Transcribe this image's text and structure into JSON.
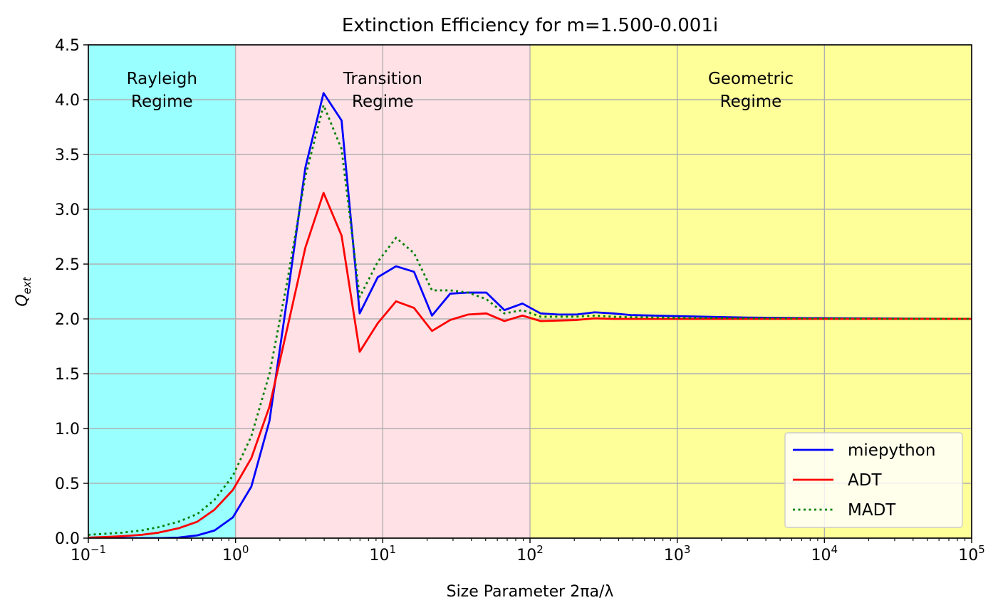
{
  "chart_data": {
    "type": "line",
    "title": "Extinction Efficiency for m=1.500-0.001i",
    "xlabel": "Size Parameter 2πa/λ",
    "ylabel": "Q_ext",
    "xscale": "log",
    "xlim": [
      0.1,
      100000
    ],
    "ylim": [
      0,
      4.5
    ],
    "grid": true,
    "legend_position": "lower right",
    "x_ticks": [
      {
        "base": "10",
        "exp": "−1"
      },
      {
        "base": "10",
        "exp": "0"
      },
      {
        "base": "10",
        "exp": "1"
      },
      {
        "base": "10",
        "exp": "2"
      },
      {
        "base": "10",
        "exp": "3"
      },
      {
        "base": "10",
        "exp": "4"
      },
      {
        "base": "10",
        "exp": "5"
      }
    ],
    "y_ticks": [
      "0.0",
      "0.5",
      "1.0",
      "1.5",
      "2.0",
      "2.5",
      "3.0",
      "3.5",
      "4.0",
      "4.5"
    ],
    "regions": [
      {
        "line1": "Rayleigh",
        "line2": "Regime",
        "from": 0.1,
        "to": 1,
        "color": "#99ffff"
      },
      {
        "line1": "Transition",
        "line2": "Regime",
        "from": 1,
        "to": 100,
        "color": "#ffe1e6"
      },
      {
        "line1": "Geometric",
        "line2": "Regime",
        "from": 100,
        "to": 100000,
        "color": "#ffff99"
      }
    ],
    "series": [
      {
        "name": "miepython",
        "color": "#0000ff",
        "style": "solid",
        "x": [
          0.1,
          0.13,
          0.17,
          0.23,
          0.3,
          0.41,
          0.55,
          0.72,
          0.96,
          1.28,
          1.7,
          2.25,
          2.98,
          3.96,
          5.25,
          6.97,
          9.24,
          12.3,
          16.3,
          21.6,
          28.7,
          38.1,
          50.5,
          67,
          88.9,
          118,
          156,
          207,
          275,
          365,
          484,
          1000,
          3000,
          10000,
          30000,
          100000
        ],
        "values": [
          0.0,
          0.0,
          0.0,
          0.0,
          0.0,
          0.005,
          0.025,
          0.07,
          0.19,
          0.47,
          1.07,
          2.2,
          3.38,
          4.06,
          3.81,
          2.05,
          2.38,
          2.48,
          2.43,
          2.03,
          2.23,
          2.24,
          2.24,
          2.08,
          2.14,
          2.05,
          2.04,
          2.04,
          2.06,
          2.05,
          2.035,
          2.025,
          2.012,
          2.006,
          2.003,
          2.0
        ]
      },
      {
        "name": "ADT",
        "color": "#ff0000",
        "style": "solid",
        "x": [
          0.1,
          0.13,
          0.17,
          0.23,
          0.3,
          0.41,
          0.55,
          0.72,
          0.96,
          1.28,
          1.7,
          2.25,
          2.98,
          3.96,
          5.25,
          6.97,
          9.24,
          12.3,
          16.3,
          21.6,
          28.7,
          38.1,
          50.5,
          67,
          88.9,
          118,
          156,
          207,
          275,
          365,
          484,
          1000,
          3000,
          10000,
          30000,
          100000
        ],
        "values": [
          0.005,
          0.01,
          0.018,
          0.03,
          0.05,
          0.09,
          0.15,
          0.26,
          0.44,
          0.73,
          1.2,
          1.92,
          2.65,
          3.15,
          2.76,
          1.7,
          1.96,
          2.16,
          2.1,
          1.89,
          1.99,
          2.04,
          2.05,
          1.98,
          2.03,
          1.98,
          1.985,
          1.99,
          2.005,
          2.0,
          2.0,
          2.0,
          2.0,
          2.0,
          2.0,
          2.0
        ]
      },
      {
        "name": "MADT",
        "color": "#008000",
        "style": "dotted",
        "x": [
          0.1,
          0.13,
          0.17,
          0.23,
          0.3,
          0.41,
          0.55,
          0.72,
          0.96,
          1.28,
          1.7,
          2.25,
          2.98,
          3.96,
          5.25,
          6.97,
          9.24,
          12.3,
          16.3,
          21.6,
          28.7,
          38.1,
          50.5,
          67,
          88.9,
          118,
          156,
          207,
          275,
          365,
          484,
          1000,
          3000,
          10000,
          30000,
          100000
        ],
        "values": [
          0.03,
          0.04,
          0.05,
          0.07,
          0.1,
          0.15,
          0.22,
          0.35,
          0.57,
          0.93,
          1.5,
          2.35,
          3.3,
          3.95,
          3.55,
          2.2,
          2.52,
          2.74,
          2.6,
          2.26,
          2.26,
          2.24,
          2.18,
          2.05,
          2.08,
          2.02,
          2.02,
          2.02,
          2.03,
          2.02,
          2.015,
          2.01,
          2.005,
          2.003,
          2.001,
          2.0
        ]
      }
    ]
  }
}
